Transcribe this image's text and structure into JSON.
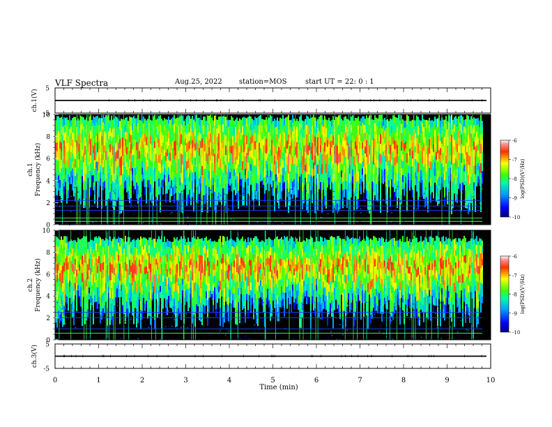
{
  "header": {
    "title": "VLF Spectra",
    "date": "Aug.25, 2022",
    "station": "station=MOS",
    "start_ut": "start  UT =   22: 0  : 1"
  },
  "chart_data": [
    {
      "type": "line",
      "title": "",
      "ylabel": "ch.1(V)",
      "ylim": [
        -5,
        5
      ],
      "yticks": [
        "5",
        "-5"
      ],
      "series": [
        {
          "values": [
            0,
            0
          ]
        }
      ]
    },
    {
      "type": "heatmap",
      "ylabel": "ch.1\nFrequency (kHz)",
      "ylim": [
        0,
        10
      ],
      "yticks": [
        "0",
        "2",
        "4",
        "6",
        "8",
        "10"
      ],
      "xlim": [
        0,
        10
      ],
      "xaxis_units": "min",
      "colorbar": {
        "label": "log(PSD)(V²/Hz)",
        "ticks": [
          "-6",
          "-7",
          "-8",
          "-9",
          "-10"
        ],
        "range": [
          -10,
          -6
        ]
      },
      "dominant_emission_khz": [
        4,
        10
      ],
      "persistent_lines_khz": [
        0.3,
        0.6,
        1.3,
        1.7,
        2.2
      ]
    },
    {
      "type": "heatmap",
      "ylabel": "ch.2\nFrequency (kHz)",
      "ylim": [
        0,
        10
      ],
      "yticks": [
        "0",
        "2",
        "4",
        "6",
        "8",
        "10"
      ],
      "xlim": [
        0,
        10
      ],
      "xaxis_units": "min",
      "colorbar": {
        "label": "log(PSD)(V²/Hz)",
        "ticks": [
          "-6",
          "-7",
          "-8",
          "-9",
          "-10"
        ],
        "range": [
          -10,
          -6
        ]
      },
      "dominant_emission_khz": [
        4,
        9.5
      ],
      "persistent_lines_khz": [
        0.6,
        1.0,
        2.0,
        2.5
      ]
    },
    {
      "type": "line",
      "ylabel": "ch.3(V)",
      "ylim": [
        -5,
        5
      ],
      "yticks": [
        "5",
        "-5"
      ],
      "series": [
        {
          "values": [
            0,
            0
          ]
        }
      ]
    }
  ],
  "xaxis": {
    "label": "Time  (min)",
    "ticks": [
      "0",
      "1",
      "2",
      "3",
      "4",
      "5",
      "6",
      "7",
      "8",
      "9",
      "10"
    ],
    "range": [
      0,
      10
    ]
  }
}
